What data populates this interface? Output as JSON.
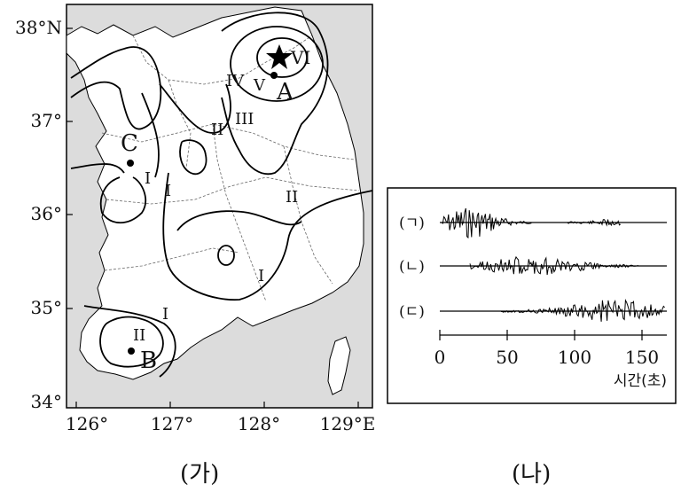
{
  "panel_a": {
    "caption": "(가)",
    "lat_labels": [
      "38°N",
      "37°",
      "36°",
      "35°",
      "34°"
    ],
    "lon_labels": [
      "126°",
      "127°",
      "128°",
      "129°E"
    ],
    "points": {
      "epicenter_label": "VI",
      "A": "A",
      "B": "B",
      "C": "C"
    },
    "contour_labels": {
      "iv": "IV",
      "v": "V",
      "iii": "III",
      "ii_north": "II",
      "ii_east": "II",
      "ii_south": "II",
      "i_west": "I",
      "i_mid": "I",
      "i_south": "I",
      "i_southwest": "I"
    }
  },
  "panel_b": {
    "caption": "(나)",
    "traces": [
      "(ㄱ)",
      "(ㄴ)",
      "(ㄷ)"
    ],
    "axis_ticks": [
      "0",
      "50",
      "100",
      "150"
    ],
    "axis_label": "시간(초)"
  }
}
